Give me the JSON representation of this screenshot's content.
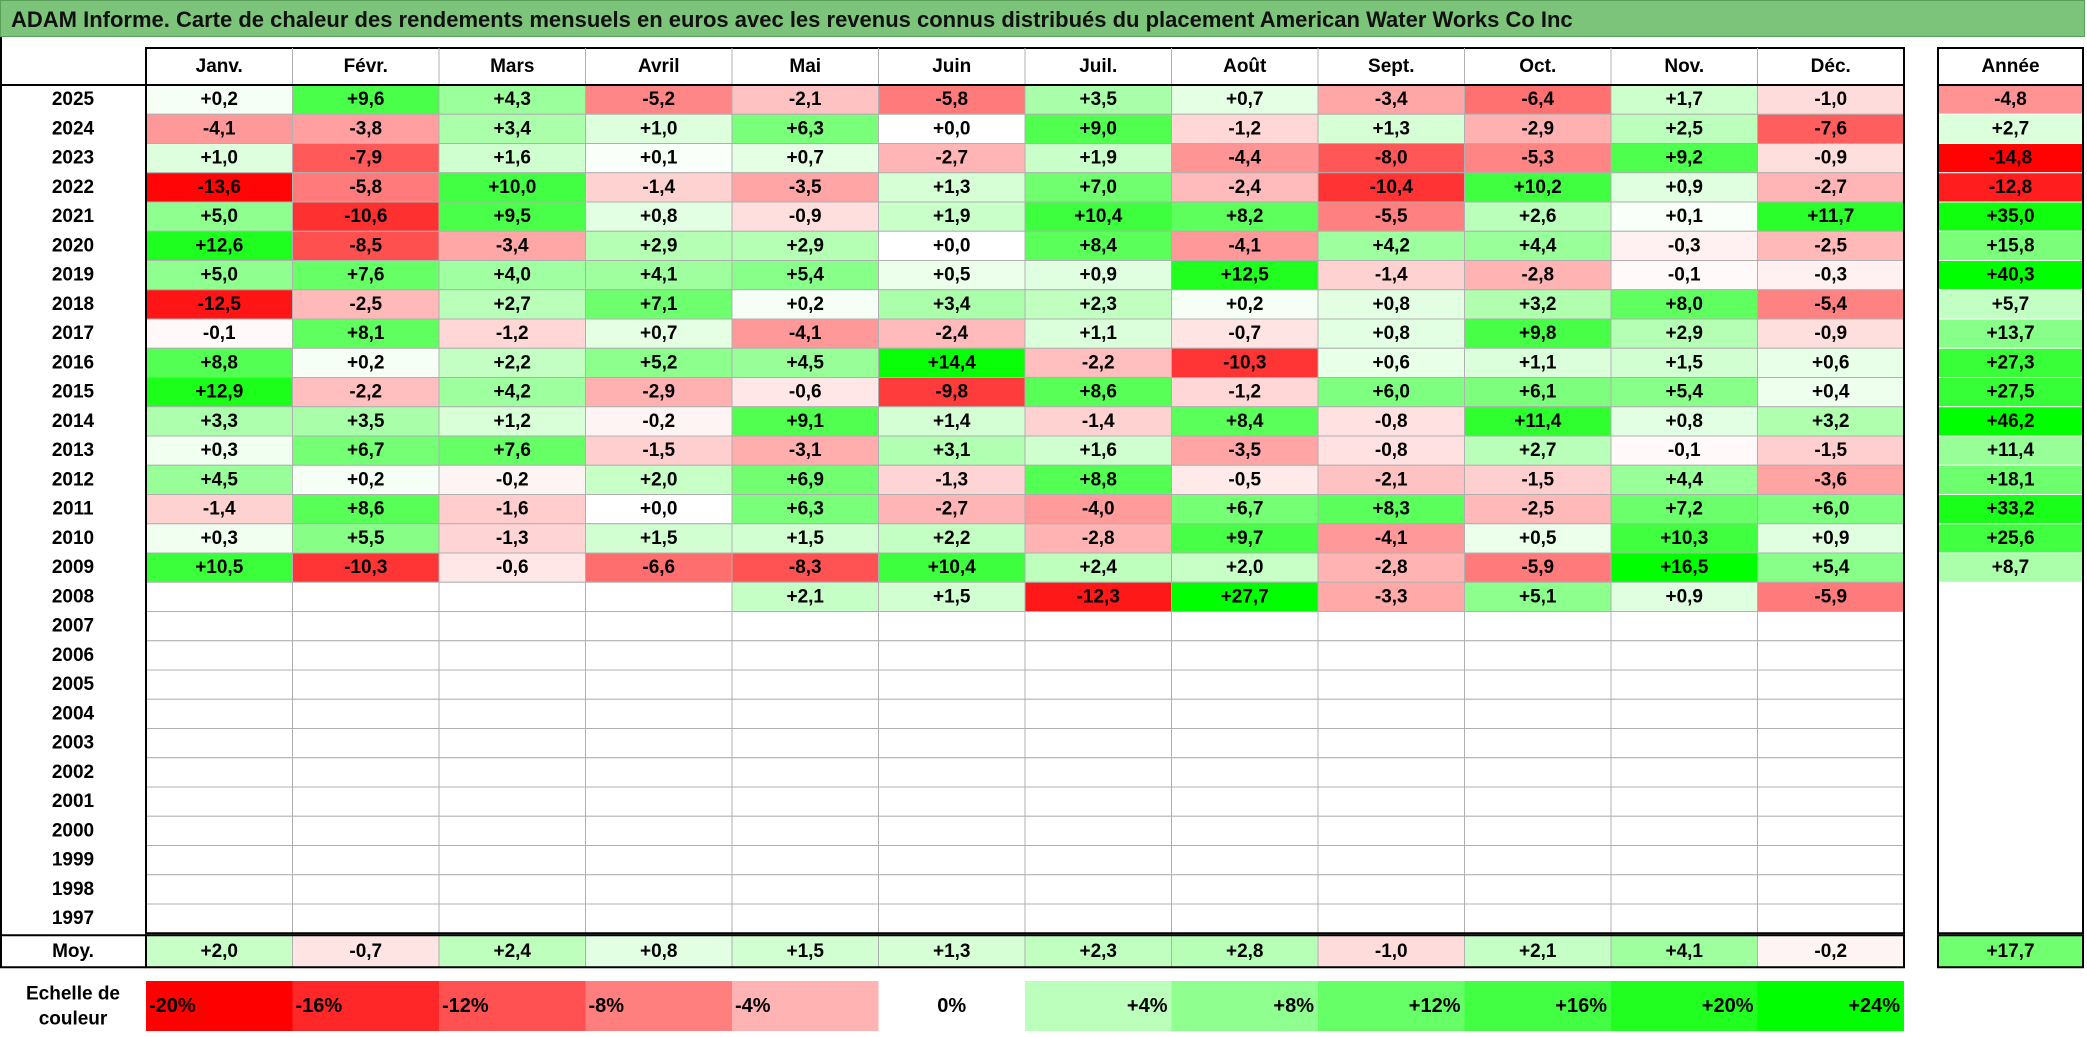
{
  "title": "ADAM Informe. Carte de chaleur des rendements mensuels en euros avec les revenus connus distribués du placement American Water Works Co Inc",
  "chart_data": {
    "type": "heatmap",
    "title": "ADAM Informe. Carte de chaleur des rendements mensuels en euros avec les revenus connus distribués du placement American Water Works Co Inc",
    "months": [
      "Janv.",
      "Févr.",
      "Mars",
      "Avril",
      "Mai",
      "Juin",
      "Juil.",
      "Août",
      "Sept.",
      "Oct.",
      "Nov.",
      "Déc."
    ],
    "annual_header": "Année",
    "rows": [
      {
        "year": "2025",
        "values": [
          "+0,2",
          "+9,6",
          "+4,3",
          "-5,2",
          "-2,1",
          "-5,8",
          "+3,5",
          "+0,7",
          "-3,4",
          "-6,4",
          "+1,7",
          "-1,0"
        ],
        "annual": "-4,8"
      },
      {
        "year": "2024",
        "values": [
          "-4,1",
          "-3,8",
          "+3,4",
          "+1,0",
          "+6,3",
          "+0,0",
          "+9,0",
          "-1,2",
          "+1,3",
          "-2,9",
          "+2,5",
          "-7,6"
        ],
        "annual": "+2,7"
      },
      {
        "year": "2023",
        "values": [
          "+1,0",
          "-7,9",
          "+1,6",
          "+0,1",
          "+0,7",
          "-2,7",
          "+1,9",
          "-4,4",
          "-8,0",
          "-5,3",
          "+9,2",
          "-0,9"
        ],
        "annual": "-14,8"
      },
      {
        "year": "2022",
        "values": [
          "-13,6",
          "-5,8",
          "+10,0",
          "-1,4",
          "-3,5",
          "+1,3",
          "+7,0",
          "-2,4",
          "-10,4",
          "+10,2",
          "+0,9",
          "-2,7"
        ],
        "annual": "-12,8"
      },
      {
        "year": "2021",
        "values": [
          "+5,0",
          "-10,6",
          "+9,5",
          "+0,8",
          "-0,9",
          "+1,9",
          "+10,4",
          "+8,2",
          "-5,5",
          "+2,6",
          "+0,1",
          "+11,7"
        ],
        "annual": "+35,0"
      },
      {
        "year": "2020",
        "values": [
          "+12,6",
          "-8,5",
          "-3,4",
          "+2,9",
          "+2,9",
          "+0,0",
          "+8,4",
          "-4,1",
          "+4,2",
          "+4,4",
          "-0,3",
          "-2,5"
        ],
        "annual": "+15,8"
      },
      {
        "year": "2019",
        "values": [
          "+5,0",
          "+7,6",
          "+4,0",
          "+4,1",
          "+5,4",
          "+0,5",
          "+0,9",
          "+12,5",
          "-1,4",
          "-2,8",
          "-0,1",
          "-0,3"
        ],
        "annual": "+40,3"
      },
      {
        "year": "2018",
        "values": [
          "-12,5",
          "-2,5",
          "+2,7",
          "+7,1",
          "+0,2",
          "+3,4",
          "+2,3",
          "+0,2",
          "+0,8",
          "+3,2",
          "+8,0",
          "-5,4"
        ],
        "annual": "+5,7"
      },
      {
        "year": "2017",
        "values": [
          "-0,1",
          "+8,1",
          "-1,2",
          "+0,7",
          "-4,1",
          "-2,4",
          "+1,1",
          "-0,7",
          "+0,8",
          "+9,8",
          "+2,9",
          "-0,9"
        ],
        "annual": "+13,7"
      },
      {
        "year": "2016",
        "values": [
          "+8,8",
          "+0,2",
          "+2,2",
          "+5,2",
          "+4,5",
          "+14,4",
          "-2,2",
          "-10,3",
          "+0,6",
          "+1,1",
          "+1,5",
          "+0,6"
        ],
        "annual": "+27,3"
      },
      {
        "year": "2015",
        "values": [
          "+12,9",
          "-2,2",
          "+4,2",
          "-2,9",
          "-0,6",
          "-9,8",
          "+8,6",
          "-1,2",
          "+6,0",
          "+6,1",
          "+5,4",
          "+0,4"
        ],
        "annual": "+27,5"
      },
      {
        "year": "2014",
        "values": [
          "+3,3",
          "+3,5",
          "+1,2",
          "-0,2",
          "+9,1",
          "+1,4",
          "-1,4",
          "+8,4",
          "-0,8",
          "+11,4",
          "+0,8",
          "+3,2"
        ],
        "annual": "+46,2"
      },
      {
        "year": "2013",
        "values": [
          "+0,3",
          "+6,7",
          "+7,6",
          "-1,5",
          "-3,1",
          "+3,1",
          "+1,6",
          "-3,5",
          "-0,8",
          "+2,7",
          "-0,1",
          "-1,5"
        ],
        "annual": "+11,4"
      },
      {
        "year": "2012",
        "values": [
          "+4,5",
          "+0,2",
          "-0,2",
          "+2,0",
          "+6,9",
          "-1,3",
          "+8,8",
          "-0,5",
          "-2,1",
          "-1,5",
          "+4,4",
          "-3,6"
        ],
        "annual": "+18,1"
      },
      {
        "year": "2011",
        "values": [
          "-1,4",
          "+8,6",
          "-1,6",
          "+0,0",
          "+6,3",
          "-2,7",
          "-4,0",
          "+6,7",
          "+8,3",
          "-2,5",
          "+7,2",
          "+6,0"
        ],
        "annual": "+33,2"
      },
      {
        "year": "2010",
        "values": [
          "+0,3",
          "+5,5",
          "-1,3",
          "+1,5",
          "+1,5",
          "+2,2",
          "-2,8",
          "+9,7",
          "-4,1",
          "+0,5",
          "+10,3",
          "+0,9"
        ],
        "annual": "+25,6"
      },
      {
        "year": "2009",
        "values": [
          "+10,5",
          "-10,3",
          "-0,6",
          "-6,6",
          "-8,3",
          "+10,4",
          "+2,4",
          "+2,0",
          "-2,8",
          "-5,9",
          "+16,5",
          "+5,4"
        ],
        "annual": "+8,7"
      },
      {
        "year": "2008",
        "values": [
          "",
          "",
          "",
          "",
          "+2,1",
          "+1,5",
          "-12,3",
          "+27,7",
          "-3,3",
          "+5,1",
          "+0,9",
          "-5,9"
        ],
        "annual": ""
      },
      {
        "year": "2007",
        "values": [
          "",
          "",
          "",
          "",
          "",
          "",
          "",
          "",
          "",
          "",
          "",
          ""
        ],
        "annual": ""
      },
      {
        "year": "2006",
        "values": [
          "",
          "",
          "",
          "",
          "",
          "",
          "",
          "",
          "",
          "",
          "",
          ""
        ],
        "annual": ""
      },
      {
        "year": "2005",
        "values": [
          "",
          "",
          "",
          "",
          "",
          "",
          "",
          "",
          "",
          "",
          "",
          ""
        ],
        "annual": ""
      },
      {
        "year": "2004",
        "values": [
          "",
          "",
          "",
          "",
          "",
          "",
          "",
          "",
          "",
          "",
          "",
          ""
        ],
        "annual": ""
      },
      {
        "year": "2003",
        "values": [
          "",
          "",
          "",
          "",
          "",
          "",
          "",
          "",
          "",
          "",
          "",
          ""
        ],
        "annual": ""
      },
      {
        "year": "2002",
        "values": [
          "",
          "",
          "",
          "",
          "",
          "",
          "",
          "",
          "",
          "",
          "",
          ""
        ],
        "annual": ""
      },
      {
        "year": "2001",
        "values": [
          "",
          "",
          "",
          "",
          "",
          "",
          "",
          "",
          "",
          "",
          "",
          ""
        ],
        "annual": ""
      },
      {
        "year": "2000",
        "values": [
          "",
          "",
          "",
          "",
          "",
          "",
          "",
          "",
          "",
          "",
          "",
          ""
        ],
        "annual": ""
      },
      {
        "year": "1999",
        "values": [
          "",
          "",
          "",
          "",
          "",
          "",
          "",
          "",
          "",
          "",
          "",
          ""
        ],
        "annual": ""
      },
      {
        "year": "1998",
        "values": [
          "",
          "",
          "",
          "",
          "",
          "",
          "",
          "",
          "",
          "",
          "",
          ""
        ],
        "annual": ""
      },
      {
        "year": "1997",
        "values": [
          "",
          "",
          "",
          "",
          "",
          "",
          "",
          "",
          "",
          "",
          "",
          ""
        ],
        "annual": ""
      }
    ],
    "average": {
      "label": "Moy.",
      "values": [
        "+2,0",
        "-0,7",
        "+2,4",
        "+0,8",
        "+1,5",
        "+1,3",
        "+2,3",
        "+2,8",
        "-1,0",
        "+2,1",
        "+4,1",
        "-0,2"
      ],
      "annual": "+17,7"
    },
    "scale": {
      "label_lines": [
        "Echelle de",
        "couleur"
      ],
      "items": [
        {
          "label": "-20%",
          "value": -20
        },
        {
          "label": "-16%",
          "value": -16
        },
        {
          "label": "-12%",
          "value": -12
        },
        {
          "label": "-8%",
          "value": -8
        },
        {
          "label": "-4%",
          "value": -4
        },
        {
          "label": "0%",
          "value": 0
        },
        {
          "label": "+4%",
          "value": 4
        },
        {
          "label": "+8%",
          "value": 8
        },
        {
          "label": "+12%",
          "value": 12
        },
        {
          "label": "+16%",
          "value": 16
        },
        {
          "label": "+20%",
          "value": 20
        },
        {
          "label": "+24%",
          "value": 24
        }
      ]
    },
    "colors": {
      "negative": "#ff0000",
      "zero": "#ffffff",
      "positive": "#00ff00",
      "title_bg": "#7dc47b",
      "grid": "#b0b0b0"
    }
  }
}
